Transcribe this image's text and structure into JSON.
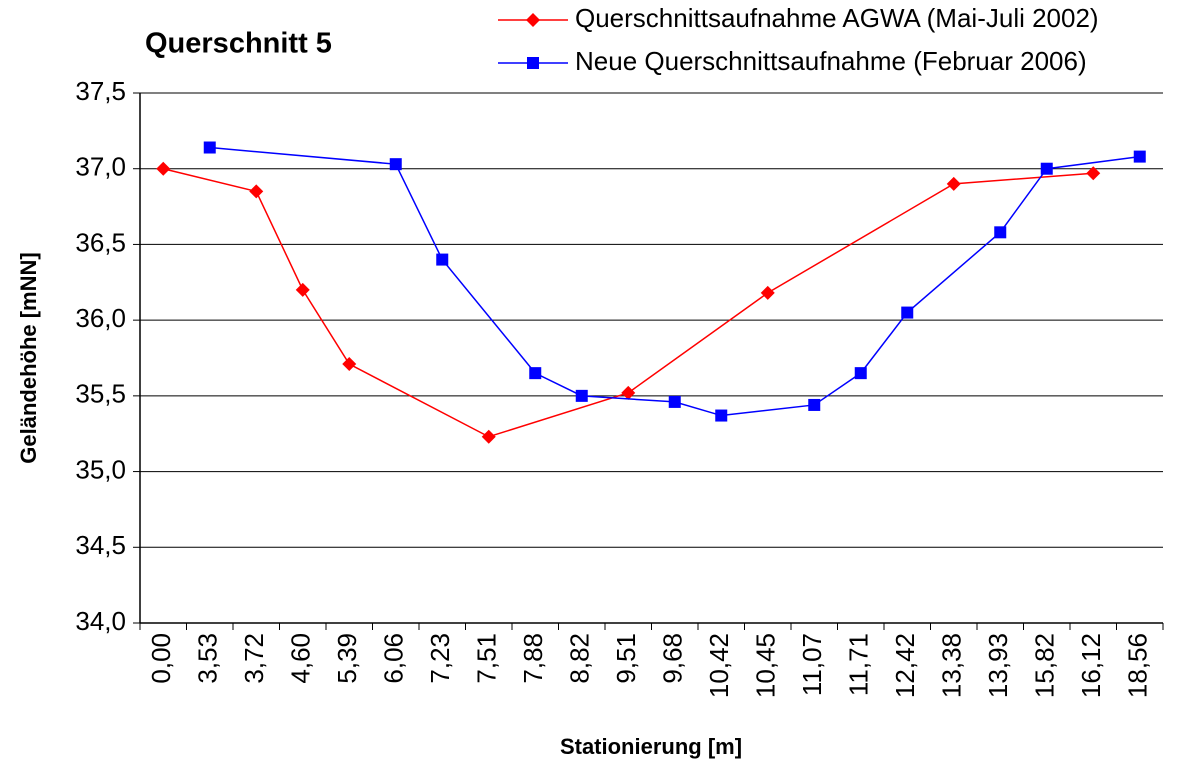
{
  "chart_data": {
    "type": "line",
    "title": "Querschnitt 5",
    "xlabel": "Stationierung [m]",
    "ylabel": "Geländehöhe [mNN]",
    "categories": [
      "0,00",
      "3,53",
      "3,72",
      "4,60",
      "5,39",
      "6,06",
      "7,23",
      "7,51",
      "7,88",
      "8,82",
      "9,51",
      "9,68",
      "10,42",
      "10,45",
      "11,07",
      "11,71",
      "12,42",
      "13,38",
      "13,93",
      "15,82",
      "16,12",
      "18,56"
    ],
    "series": [
      {
        "name": "Querschnittsaufnahme AGWA (Mai-Juli 2002)",
        "color": "#ff0000",
        "marker": "diamond",
        "values": [
          37.0,
          null,
          36.85,
          36.2,
          35.71,
          null,
          null,
          35.23,
          null,
          null,
          35.52,
          null,
          null,
          36.18,
          null,
          null,
          null,
          36.9,
          null,
          null,
          36.97,
          null
        ]
      },
      {
        "name": "Neue Querschnittsaufnahme (Februar 2006)",
        "color": "#0000ff",
        "marker": "square",
        "values": [
          null,
          37.14,
          null,
          null,
          null,
          37.03,
          36.4,
          null,
          35.65,
          35.5,
          null,
          35.46,
          35.37,
          null,
          35.44,
          35.65,
          36.05,
          null,
          36.58,
          37.0,
          null,
          37.08
        ]
      }
    ],
    "connect_gaps": true,
    "ylim": [
      34.0,
      37.5
    ],
    "yticks": [
      {
        "value": 34.0,
        "label": "34,0"
      },
      {
        "value": 34.5,
        "label": "34,5"
      },
      {
        "value": 35.0,
        "label": "35,0"
      },
      {
        "value": 35.5,
        "label": "35,5"
      },
      {
        "value": 36.0,
        "label": "36,0"
      },
      {
        "value": 36.5,
        "label": "36,5"
      },
      {
        "value": 37.0,
        "label": "37,0"
      },
      {
        "value": 37.5,
        "label": "37,5"
      }
    ],
    "grid": true,
    "legend": "top-right"
  }
}
